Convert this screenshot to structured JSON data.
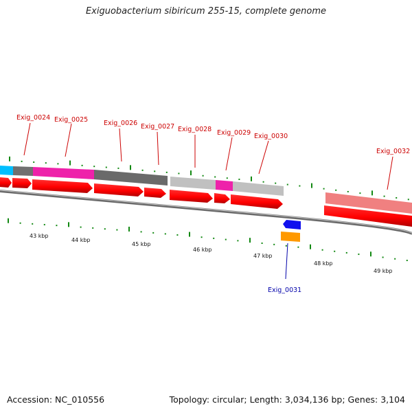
{
  "title": "Exiguobacterium sibiricum 255-15, complete genome",
  "footer": {
    "accession": "Accession: NC_010556",
    "summary": "Topology: circular; Length: 3,034,136 bp; Genes: 3,104"
  },
  "colors": {
    "gene_label": "#cc0000",
    "gene_label_highlight": "#0000aa",
    "cds_arrow": "#ff0000",
    "tick": "#118811",
    "backbone": "#808080"
  },
  "scale_labels": [
    "43 kbp",
    "44 kbp",
    "45 kbp",
    "46 kbp",
    "47 kbp",
    "48 kbp",
    "49 kbp"
  ],
  "gene_labels": [
    {
      "id": "Exig_0024",
      "color": "#cc0000"
    },
    {
      "id": "Exig_0025",
      "color": "#cc0000"
    },
    {
      "id": "Exig_0026",
      "color": "#cc0000"
    },
    {
      "id": "Exig_0027",
      "color": "#cc0000"
    },
    {
      "id": "Exig_0028",
      "color": "#cc0000"
    },
    {
      "id": "Exig_0029",
      "color": "#cc0000"
    },
    {
      "id": "Exig_0030",
      "color": "#cc0000"
    },
    {
      "id": "Exig_0032",
      "color": "#cc0000"
    },
    {
      "id": "Exig_0031",
      "color": "#0000aa"
    }
  ],
  "feature_colors": {
    "cyan": "#00bfff",
    "dark_gray": "#707070",
    "magenta": "#ee22aa",
    "light_gray": "#c0c0c0",
    "pink": "#f08080",
    "blue": "#1010ee",
    "orange": "#ff9900"
  }
}
